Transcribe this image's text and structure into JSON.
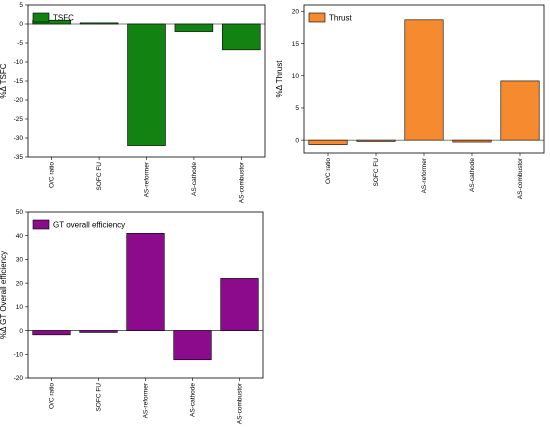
{
  "chart_data": [
    {
      "type": "bar",
      "categories": [
        "O/C ratio",
        "SOFC FU",
        "AS-reformer",
        "AS-cathode",
        "AS-combustor"
      ],
      "series": [
        {
          "name": "TSFC",
          "values": [
            1.0,
            0.3,
            -32.0,
            -2.0,
            -6.8
          ]
        }
      ],
      "ylabel": "%Δ TSFC",
      "ylim": [
        -35,
        5
      ],
      "yticks": [
        5,
        0,
        -5,
        -10,
        -15,
        -20,
        -25,
        -30,
        -35
      ],
      "color": "#128212",
      "legend_position": "top-left"
    },
    {
      "type": "bar",
      "categories": [
        "O/C ratio",
        "SOFC FU",
        "AS-reformer",
        "AS-cathode",
        "AS-combustor"
      ],
      "series": [
        {
          "name": "Thrust",
          "values": [
            -0.7,
            -0.2,
            18.7,
            -0.3,
            9.2
          ]
        }
      ],
      "ylabel": "%Δ Thrust",
      "ylim": [
        -2,
        21
      ],
      "yticks": [
        20,
        15,
        10,
        5,
        0
      ],
      "color": "#f58a2e",
      "legend_position": "top-left"
    },
    {
      "type": "bar",
      "categories": [
        "O/C ratio",
        "SOFC FU",
        "AS-reformer",
        "AS-cathode",
        "AS-combustor"
      ],
      "series": [
        {
          "name": "GT overall efficiency",
          "values": [
            -1.8,
            -0.8,
            41.0,
            -12.3,
            22.0
          ]
        }
      ],
      "ylabel": "%Δ GT Overall efficiency",
      "ylim": [
        -20,
        50
      ],
      "yticks": [
        50,
        40,
        30,
        20,
        10,
        0,
        -10,
        -20
      ],
      "color": "#8c0a8c",
      "legend_position": "top-left"
    }
  ]
}
